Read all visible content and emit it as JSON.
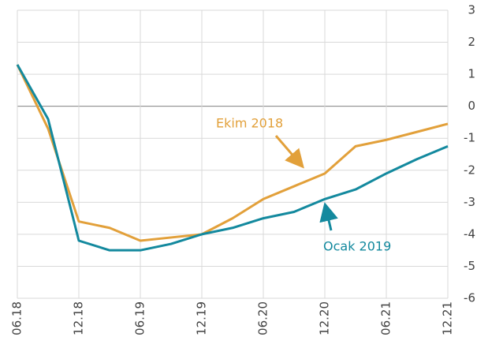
{
  "chart_data": {
    "type": "line",
    "categories": [
      "06.18",
      null,
      "12.18",
      null,
      "06.19",
      null,
      "12.19",
      null,
      "06.20",
      null,
      "12.20",
      null,
      "06.21",
      null,
      "12.21"
    ],
    "series": [
      {
        "name": "Ekim 2018",
        "color": "#e2a03a",
        "values": [
          1.3,
          -0.7,
          -3.6,
          -3.8,
          -4.2,
          -4.1,
          -4.0,
          -3.5,
          -2.9,
          -2.5,
          -2.1,
          -1.25,
          -1.05,
          -0.8,
          -0.55
        ]
      },
      {
        "name": "Ocak 2019",
        "color": "#13899e",
        "values": [
          1.3,
          -0.4,
          -4.2,
          -4.5,
          -4.5,
          -4.3,
          -4.0,
          -3.8,
          -3.5,
          -3.3,
          -2.9,
          -2.6,
          -2.1,
          -1.65,
          -1.25
        ]
      }
    ],
    "ylim": [
      -6,
      3
    ],
    "yticks": [
      3,
      2,
      1,
      0,
      -1,
      -2,
      -3,
      -4,
      -5,
      -6
    ],
    "grid": true
  }
}
